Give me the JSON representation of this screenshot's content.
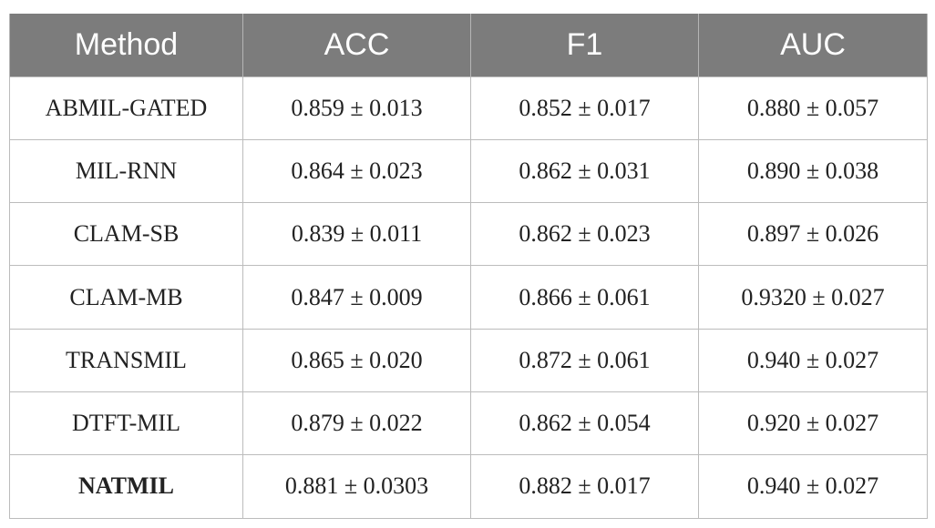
{
  "table": {
    "headers": [
      "Method",
      "ACC",
      "F1",
      "AUC"
    ],
    "rows": [
      {
        "method": "ABMIL-GATED",
        "acc": "0.859 ± 0.013",
        "f1": "0.852 ± 0.017",
        "auc": "0.880 ± 0.057"
      },
      {
        "method": "MIL-RNN",
        "acc": "0.864 ± 0.023",
        "f1": "0.862 ± 0.031",
        "auc": "0.890 ± 0.038"
      },
      {
        "method": "CLAM-SB",
        "acc": "0.839 ± 0.011",
        "f1": "0.862 ± 0.023",
        "auc": "0.897 ± 0.026"
      },
      {
        "method": "CLAM-MB",
        "acc": "0.847 ± 0.009",
        "f1": "0.866 ± 0.061",
        "auc": "0.9320 ± 0.027"
      },
      {
        "method": "TRANSMIL",
        "acc": "0.865 ± 0.020",
        "f1": "0.872 ± 0.061",
        "auc": "0.940 ± 0.027"
      },
      {
        "method": "DTFT-MIL",
        "acc": "0.879 ± 0.022",
        "f1": "0.862 ± 0.054",
        "auc": "0.920 ± 0.027"
      },
      {
        "method": "NATMIL",
        "acc": "0.881 ± 0.0303",
        "f1": "0.882 ± 0.017",
        "auc": "0.940 ± 0.027"
      }
    ]
  }
}
